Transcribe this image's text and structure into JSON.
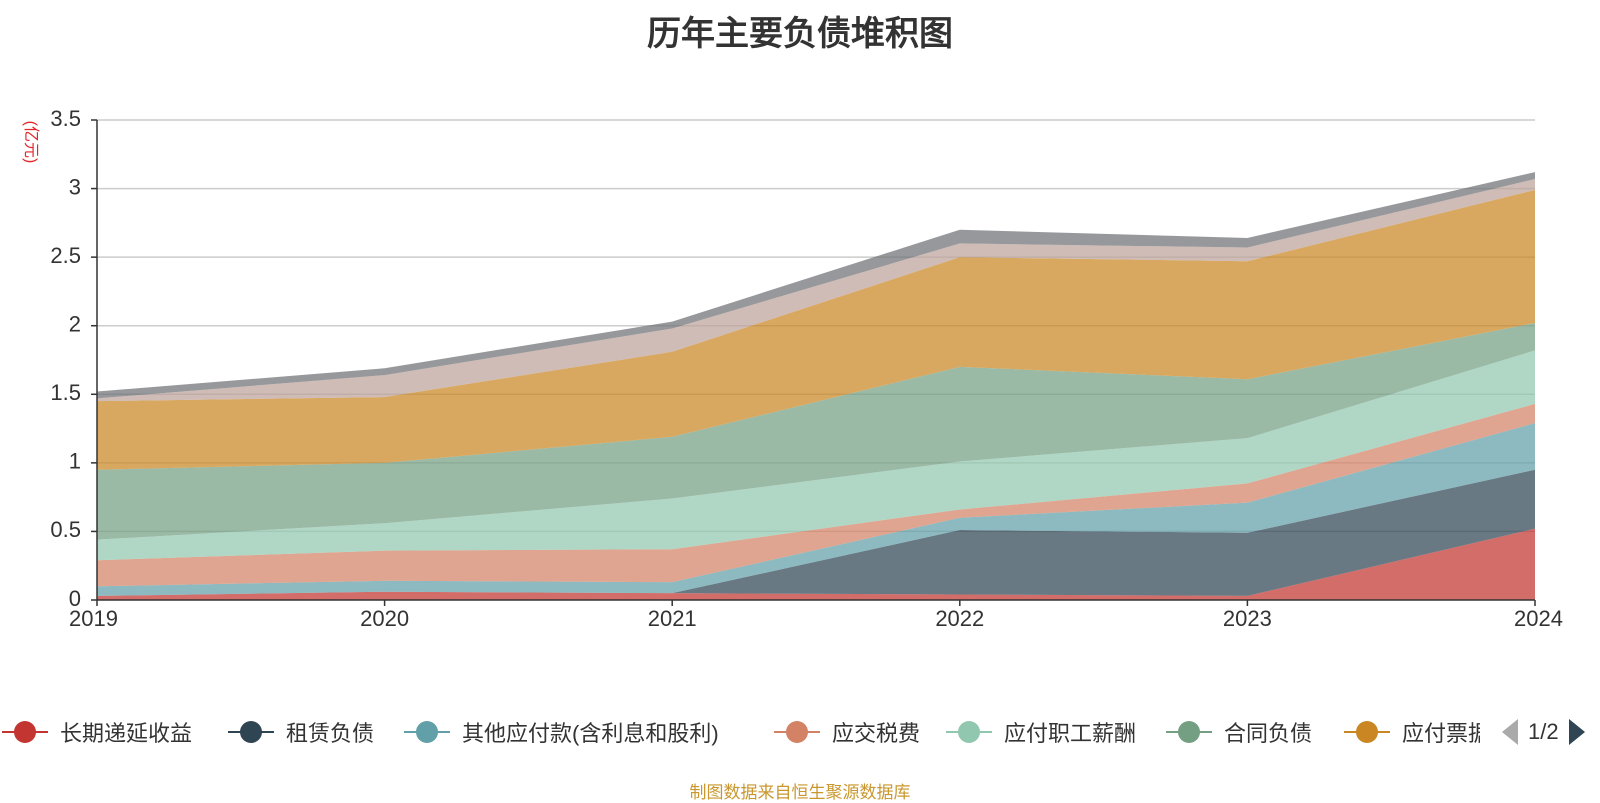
{
  "chart_data": {
    "type": "area",
    "stacked": true,
    "title": "历年主要负债堆积图",
    "ylabel": "(亿元)",
    "xlabel": "",
    "categories": [
      "2019",
      "2020",
      "2021",
      "2022",
      "2023",
      "2024"
    ],
    "ylim": [
      0,
      3.5
    ],
    "yticks": [
      "0",
      "0.5",
      "1",
      "1.5",
      "2",
      "2.5",
      "3",
      "3.5"
    ],
    "grid": true,
    "series": [
      {
        "name": "长期递延收益",
        "color": "#c23531",
        "values": [
          0.03,
          0.06,
          0.05,
          0.04,
          0.03,
          0.52
        ]
      },
      {
        "name": "租赁负债",
        "color": "#2f4554",
        "values": [
          0.0,
          0.0,
          0.0,
          0.47,
          0.46,
          0.43
        ]
      },
      {
        "name": "其他应付款(含利息和股利)",
        "color": "#61a0a8",
        "values": [
          0.07,
          0.08,
          0.08,
          0.09,
          0.22,
          0.34
        ]
      },
      {
        "name": "应交税费",
        "color": "#d48265",
        "values": [
          0.19,
          0.22,
          0.24,
          0.06,
          0.14,
          0.14
        ]
      },
      {
        "name": "应付职工薪酬",
        "color": "#91c7ae",
        "values": [
          0.15,
          0.2,
          0.37,
          0.35,
          0.33,
          0.39
        ]
      },
      {
        "name": "合同负债",
        "color": "#749f83",
        "values": [
          0.51,
          0.44,
          0.45,
          0.69,
          0.43,
          0.2
        ]
      },
      {
        "name": "应付票据",
        "color": "#ca8622",
        "values": [
          0.5,
          0.48,
          0.62,
          0.8,
          0.86,
          0.97
        ]
      },
      {
        "name": "",
        "color": "#bda29a",
        "values": [
          0.02,
          0.16,
          0.17,
          0.1,
          0.1,
          0.08
        ]
      },
      {
        "name": "",
        "color": "#6e7074",
        "values": [
          0.05,
          0.05,
          0.05,
          0.1,
          0.07,
          0.05
        ]
      }
    ],
    "legend": {
      "position": "bottom",
      "visible": [
        "长期递延收益",
        "租赁负债",
        "其他应付款(含利息和股利)",
        "应交税费",
        "应付职工薪酬",
        "合同负债",
        "应付票据"
      ],
      "page": "1/2"
    }
  },
  "source_note": "制图数据来自恒生聚源数据库"
}
